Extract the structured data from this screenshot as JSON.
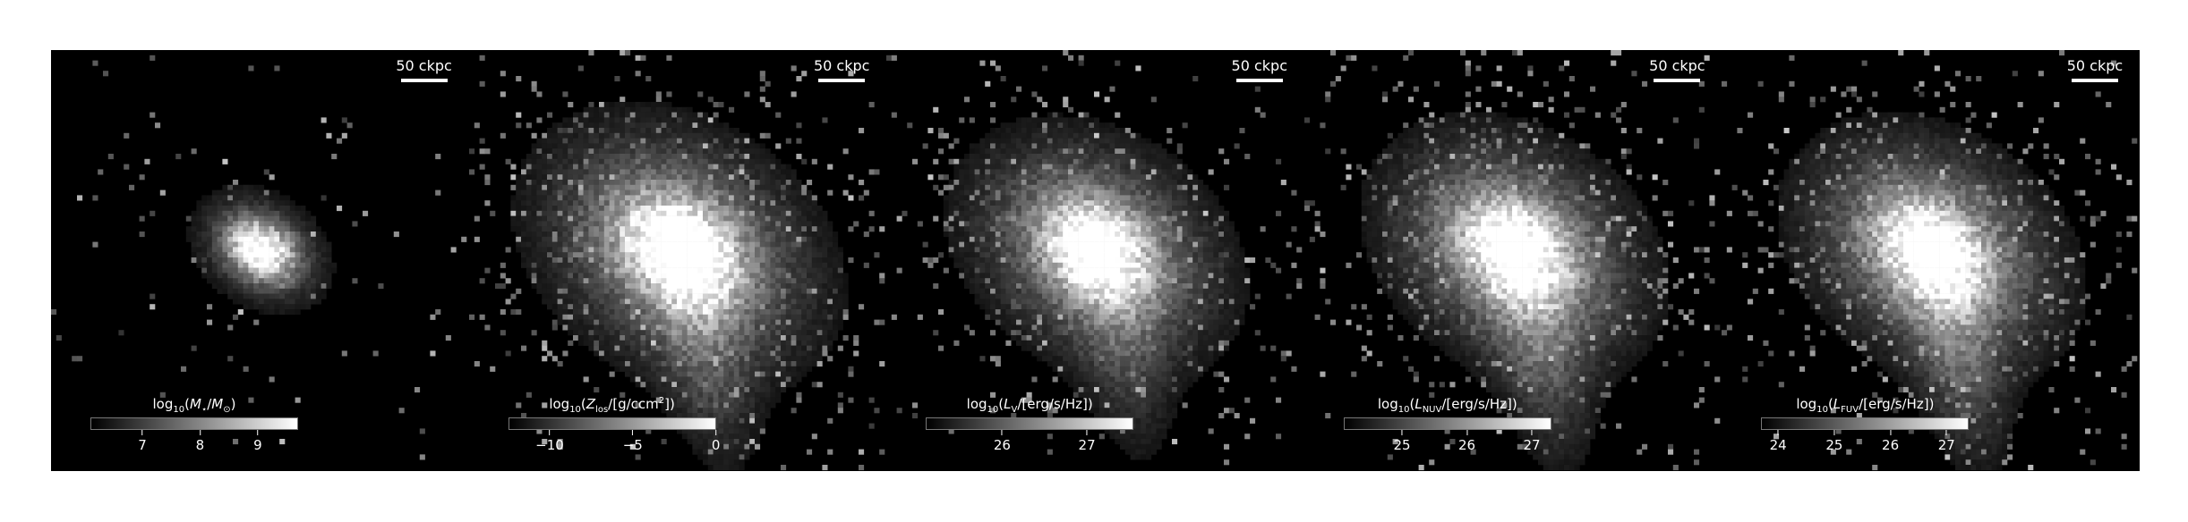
{
  "panels": [
    {
      "scalebar": "50 ckpc",
      "colorbar": {
        "title_parts": [
          "log",
          "10",
          "(",
          "M",
          "⋆",
          "/",
          "M",
          "⊙",
          ")"
        ],
        "min": 6.1,
        "max": 9.7,
        "ticks": [
          7,
          8,
          9
        ],
        "tick_labels": [
          "7",
          "8",
          "9"
        ]
      }
    },
    {
      "scalebar": "50 ckpc",
      "colorbar": {
        "title_parts": [
          "log",
          "10",
          "(",
          "Z",
          "los",
          "/[g/ccm",
          "2",
          "])"
        ],
        "min": -12.5,
        "max": 0,
        "ticks": [
          -10,
          -5,
          0
        ],
        "tick_labels": [
          "−10",
          "−5",
          "0"
        ]
      }
    },
    {
      "scalebar": "50 ckpc",
      "colorbar": {
        "title_parts": [
          "log",
          "10",
          "(",
          "L",
          "V",
          "/[erg/s/Hz])"
        ],
        "min": 25.1,
        "max": 27.55,
        "ticks": [
          26,
          27
        ],
        "tick_labels": [
          "26",
          "27"
        ]
      }
    },
    {
      "scalebar": "50 ckpc",
      "colorbar": {
        "title_parts": [
          "log",
          "10",
          "(",
          "L",
          "NUV",
          "/[erg/s/Hz])"
        ],
        "min": 24.1,
        "max": 27.3,
        "ticks": [
          25,
          26,
          27
        ],
        "tick_labels": [
          "25",
          "26",
          "27"
        ]
      }
    },
    {
      "scalebar": "50 ckpc",
      "colorbar": {
        "title_parts": [
          "log",
          "10",
          "(",
          "L",
          "FUV",
          "/[erg/s/Hz])"
        ],
        "min": 23.7,
        "max": 27.4,
        "ticks": [
          24,
          25,
          26,
          27
        ],
        "tick_labels": [
          "24",
          "25",
          "26",
          "27"
        ]
      }
    }
  ]
}
